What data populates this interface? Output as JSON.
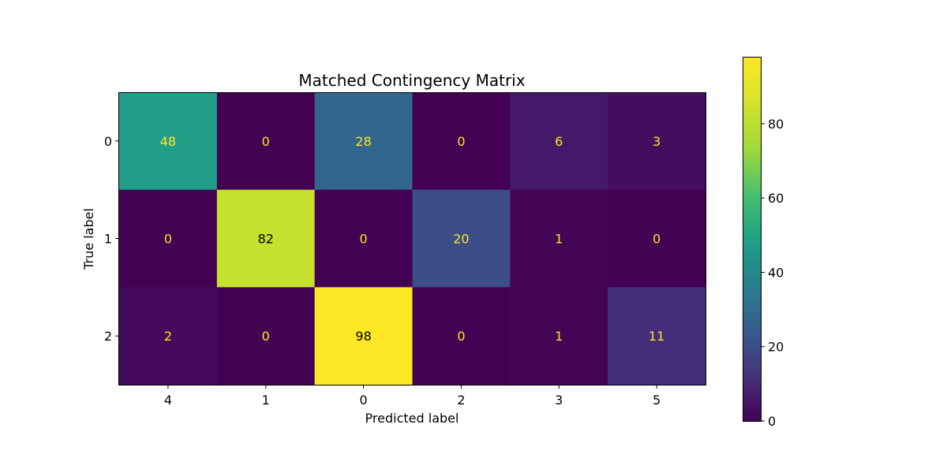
{
  "chart_data": {
    "type": "heatmap",
    "title": "Matched Contingency Matrix",
    "xlabel": "Predicted label",
    "ylabel": "True label",
    "x_categories": [
      "4",
      "1",
      "0",
      "2",
      "3",
      "5"
    ],
    "y_categories": [
      "0",
      "1",
      "2"
    ],
    "values": [
      [
        48,
        0,
        28,
        0,
        6,
        3
      ],
      [
        0,
        82,
        0,
        20,
        1,
        0
      ],
      [
        2,
        0,
        98,
        0,
        1,
        11
      ]
    ],
    "colormap": "viridis",
    "vmin": 0,
    "vmax": 98,
    "colorbar_ticks": [
      0,
      20,
      40,
      60,
      80
    ],
    "text_color_light": "#fde725",
    "text_color_dark": "#000000"
  }
}
